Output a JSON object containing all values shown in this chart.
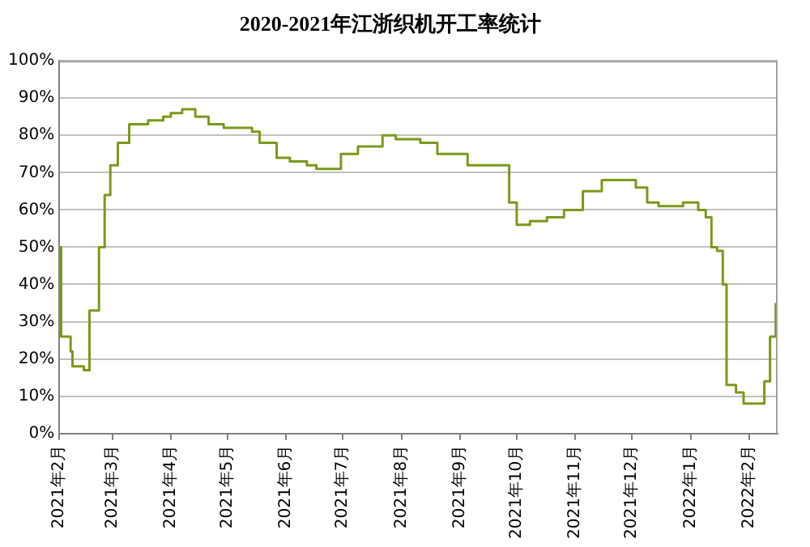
{
  "chart_data": {
    "type": "step",
    "title": "2020-2021年江浙织机开工率统计",
    "x": [
      "2021-02-01",
      "2021-02-02",
      "2021-02-07",
      "2021-02-08",
      "2021-02-14",
      "2021-02-17",
      "2021-02-22",
      "2021-02-25",
      "2021-02-28",
      "2021-03-04",
      "2021-03-10",
      "2021-03-20",
      "2021-03-28",
      "2021-04-01",
      "2021-04-07",
      "2021-04-14",
      "2021-04-21",
      "2021-04-29",
      "2021-05-14",
      "2021-05-18",
      "2021-05-27",
      "2021-06-03",
      "2021-06-12",
      "2021-06-17",
      "2021-06-30",
      "2021-07-09",
      "2021-07-22",
      "2021-07-29",
      "2021-08-11",
      "2021-08-20",
      "2021-09-05",
      "2021-09-27",
      "2021-10-01",
      "2021-10-08",
      "2021-10-17",
      "2021-10-26",
      "2021-11-05",
      "2021-11-15",
      "2021-12-03",
      "2021-12-09",
      "2021-12-15",
      "2021-12-28",
      "2022-01-05",
      "2022-01-09",
      "2022-01-12",
      "2022-01-15",
      "2022-01-18",
      "2022-01-20",
      "2022-01-25",
      "2022-01-29",
      "2022-02-09",
      "2022-02-12",
      "2022-02-15"
    ],
    "series": [
      {
        "color": "#7a9a1a",
        "values": [
          50,
          26,
          22,
          18,
          17,
          33,
          50,
          64,
          72,
          78,
          83,
          84,
          85,
          86,
          87,
          85,
          83,
          82,
          81,
          78,
          74,
          73,
          72,
          71,
          75,
          77,
          80,
          79,
          78,
          75,
          72,
          62,
          56,
          57,
          58,
          60,
          65,
          68,
          66,
          62,
          61,
          62,
          60,
          58,
          50,
          49,
          40,
          13,
          11,
          8,
          14,
          26,
          35
        ]
      }
    ],
    "xlim": [
      "2021-02-01",
      "2022-02-16"
    ],
    "xticks": [
      {
        "value": "2021-02-01",
        "label": "2021年2月"
      },
      {
        "value": "2021-03-01",
        "label": "2021年3月"
      },
      {
        "value": "2021-04-01",
        "label": "2021年4月"
      },
      {
        "value": "2021-05-01",
        "label": "2021年5月"
      },
      {
        "value": "2021-06-01",
        "label": "2021年6月"
      },
      {
        "value": "2021-07-01",
        "label": "2021年7月"
      },
      {
        "value": "2021-08-01",
        "label": "2021年8月"
      },
      {
        "value": "2021-09-01",
        "label": "2021年9月"
      },
      {
        "value": "2021-10-01",
        "label": "2021年10月"
      },
      {
        "value": "2021-11-01",
        "label": "2021年11月"
      },
      {
        "value": "2021-12-01",
        "label": "2021年12月"
      },
      {
        "value": "2022-01-01",
        "label": "2022年1月"
      },
      {
        "value": "2022-02-01",
        "label": "2022年2月"
      }
    ],
    "ylim": [
      0,
      100
    ],
    "yticks": [
      {
        "value": 0,
        "label": "0%"
      },
      {
        "value": 10,
        "label": "10%"
      },
      {
        "value": 20,
        "label": "20%"
      },
      {
        "value": 30,
        "label": "30%"
      },
      {
        "value": 40,
        "label": "40%"
      },
      {
        "value": 50,
        "label": "50%"
      },
      {
        "value": 60,
        "label": "60%"
      },
      {
        "value": 70,
        "label": "70%"
      },
      {
        "value": 80,
        "label": "80%"
      },
      {
        "value": 90,
        "label": "90%"
      },
      {
        "value": 100,
        "label": "100%"
      }
    ],
    "grid": "y",
    "legend": false,
    "marker": "none",
    "line_style": "solid"
  }
}
